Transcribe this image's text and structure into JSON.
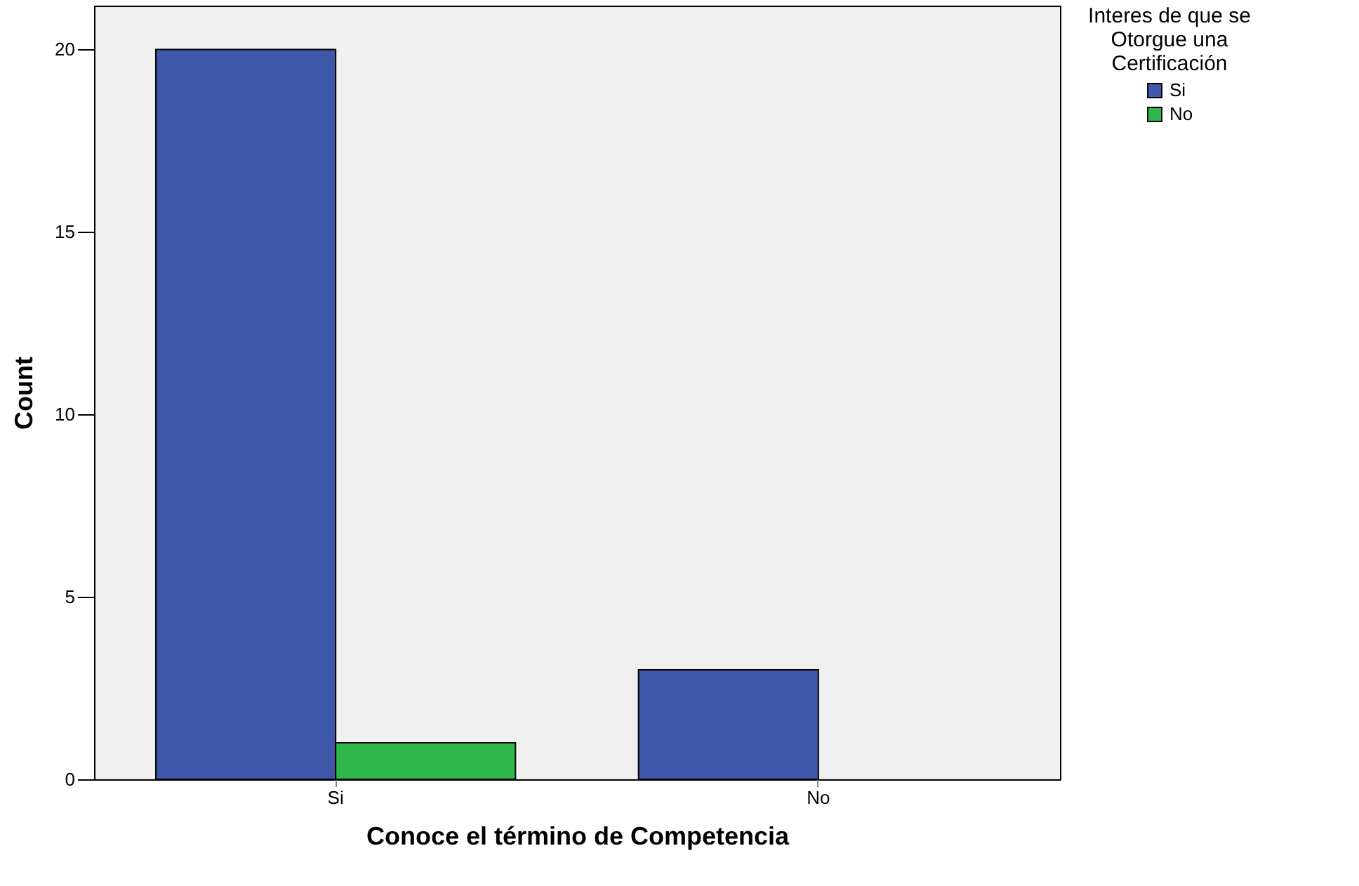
{
  "chart_data": {
    "type": "bar",
    "xlabel": "Conoce el término de Competencia",
    "ylabel": "Count",
    "legend_title": "Interes de que se Otorgue una Certificación",
    "legend": "top right",
    "categories": [
      "Si",
      "No"
    ],
    "series": [
      {
        "name": "Si",
        "color": "#3f57a8",
        "values": [
          20,
          3
        ]
      },
      {
        "name": "No",
        "color": "#2eb84b",
        "values": [
          1,
          0
        ]
      }
    ],
    "ylim": [
      0,
      21.2
    ],
    "yticks": [
      0,
      5,
      10,
      15,
      20
    ]
  }
}
